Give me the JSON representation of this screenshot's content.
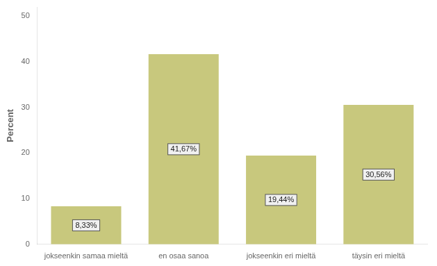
{
  "chart_data": {
    "type": "bar",
    "categories": [
      "jokseenkin samaa mieltä",
      "en osaa sanoa",
      "jokseenkin eri mieltä",
      "täysin eri mieltä"
    ],
    "values": [
      8.33,
      41.67,
      19.44,
      30.56
    ],
    "value_labels": [
      "8,33%",
      "41,67%",
      "19,44%",
      "30,56%"
    ],
    "data_labels": true,
    "color": "#c8c87d",
    "ylabel": "Percent",
    "ylim": [
      0,
      52
    ],
    "yticks": [
      0,
      10,
      20,
      30,
      40,
      50
    ],
    "grid": false
  }
}
